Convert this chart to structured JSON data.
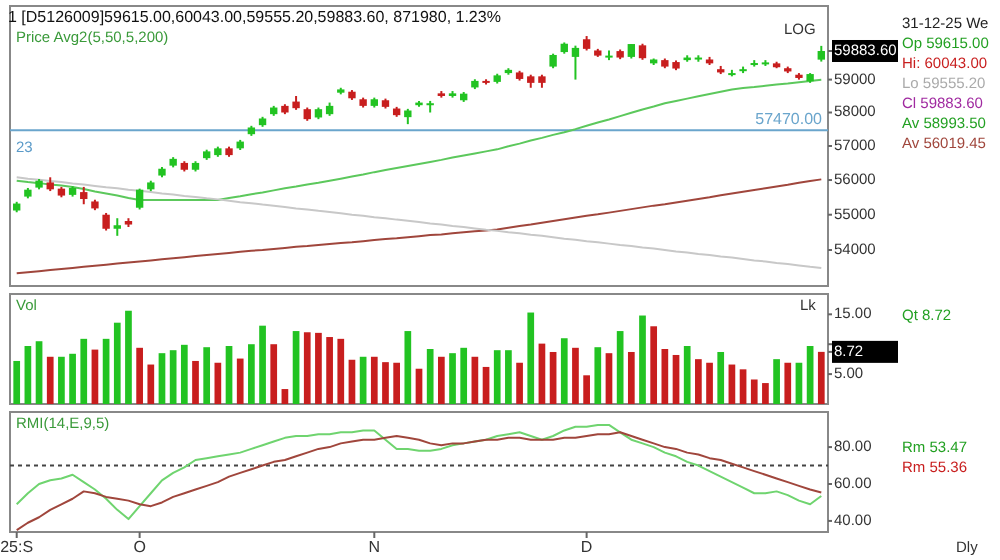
{
  "chart_data": [
    {
      "type": "candlestick",
      "title": "1 [D5126009]59615.00,60043.00,59555.20,59883.60, 871980, 1.23%",
      "log": true,
      "tick_labels": "y",
      "ylim": [
        53000,
        61300
      ],
      "yticks": [
        54000,
        55000,
        56000,
        57000,
        58000,
        59000,
        {
          "value": 59883.6,
          "label": "59883.60"
        }
      ],
      "categories": [
        null,
        null,
        null,
        null,
        null,
        null,
        null,
        null,
        null,
        null,
        null,
        null,
        null,
        null,
        null,
        null,
        null,
        null,
        null,
        null,
        null,
        null,
        null,
        null,
        null,
        null,
        null,
        null,
        null,
        null,
        null,
        null,
        null,
        null,
        null,
        null,
        null,
        null,
        null,
        null,
        null,
        null,
        null,
        null,
        null,
        null,
        null,
        null,
        null,
        null,
        null,
        null,
        null,
        null,
        null,
        null,
        null,
        null,
        null,
        null,
        null,
        null,
        null,
        null,
        null,
        null,
        null,
        null,
        null,
        null,
        null,
        null,
        null
      ],
      "ohlc": [
        [
          55120,
          55370,
          55070,
          55320
        ],
        [
          55520,
          55770,
          55470,
          55720
        ],
        [
          55780,
          56030,
          55730,
          55980
        ],
        [
          55930,
          56080,
          55680,
          55730
        ],
        [
          55750,
          55800,
          55500,
          55550
        ],
        [
          55570,
          55820,
          55520,
          55770
        ],
        [
          55650,
          55800,
          55300,
          55450
        ],
        [
          55380,
          55430,
          55130,
          55180
        ],
        [
          55000,
          55050,
          54550,
          54600
        ],
        [
          54600,
          54900,
          54400,
          54700
        ],
        [
          54820,
          54900,
          54650,
          54720
        ],
        [
          55200,
          55750,
          55150,
          55720
        ],
        [
          55730,
          55980,
          55680,
          55930
        ],
        [
          56130,
          56380,
          56080,
          56330
        ],
        [
          56420,
          56670,
          56370,
          56620
        ],
        [
          56500,
          56550,
          56250,
          56300
        ],
        [
          56300,
          56550,
          56250,
          56500
        ],
        [
          56640,
          56890,
          56590,
          56840
        ],
        [
          56730,
          56980,
          56680,
          56930
        ],
        [
          56930,
          56980,
          56680,
          56730
        ],
        [
          56930,
          57180,
          56880,
          57130
        ],
        [
          57350,
          57600,
          57300,
          57550
        ],
        [
          57620,
          57870,
          57570,
          57820
        ],
        [
          57950,
          58200,
          57900,
          58150
        ],
        [
          58200,
          58250,
          57950,
          58000
        ],
        [
          58330,
          58500,
          58080,
          58130
        ],
        [
          58100,
          58150,
          57750,
          57800
        ],
        [
          57850,
          58150,
          57800,
          58100
        ],
        [
          57950,
          58300,
          57900,
          58200
        ],
        [
          58600,
          58750,
          58550,
          58700
        ],
        [
          58630,
          58680,
          58380,
          58430
        ],
        [
          58400,
          58450,
          58150,
          58200
        ],
        [
          58200,
          58450,
          58150,
          58400
        ],
        [
          58370,
          58420,
          58120,
          58170
        ],
        [
          58120,
          58170,
          57870,
          57920
        ],
        [
          57860,
          58110,
          57650,
          58060
        ],
        [
          58220,
          58350,
          58170,
          58300
        ],
        [
          58240,
          58350,
          58000,
          58280
        ],
        [
          58580,
          58650,
          58450,
          58500
        ],
        [
          58500,
          58650,
          58450,
          58580
        ],
        [
          58370,
          58620,
          58320,
          58570
        ],
        [
          58760,
          59010,
          58710,
          58960
        ],
        [
          58960,
          59010,
          58850,
          58900
        ],
        [
          58930,
          59180,
          58880,
          59130
        ],
        [
          59200,
          59350,
          59150,
          59300
        ],
        [
          59220,
          59270,
          58970,
          59020
        ],
        [
          59100,
          59150,
          58750,
          58900
        ],
        [
          59100,
          59150,
          58750,
          58900
        ],
        [
          59400,
          59800,
          59350,
          59760
        ],
        [
          59850,
          60150,
          59800,
          60110
        ],
        [
          59700,
          60050,
          59000,
          59980
        ],
        [
          60250,
          60350,
          59900,
          59950
        ],
        [
          59900,
          59950,
          59700,
          59740
        ],
        [
          59700,
          59900,
          59600,
          59740
        ],
        [
          59880,
          59930,
          59630,
          59680
        ],
        [
          59700,
          60100,
          59650,
          60100
        ],
        [
          60060,
          60110,
          59610,
          59660
        ],
        [
          59500,
          59650,
          59450,
          59620
        ],
        [
          59600,
          59650,
          59350,
          59400
        ],
        [
          59540,
          59590,
          59290,
          59340
        ],
        [
          59600,
          59750,
          59550,
          59680
        ],
        [
          59640,
          59750,
          59550,
          59680
        ],
        [
          59620,
          59700,
          59450,
          59500
        ],
        [
          59320,
          59420,
          59170,
          59220
        ],
        [
          59160,
          59300,
          59100,
          59200
        ],
        [
          59280,
          59400,
          59200,
          59320
        ],
        [
          59490,
          59600,
          59400,
          59510
        ],
        [
          59510,
          59600,
          59420,
          59530
        ],
        [
          59500,
          59550,
          59350,
          59380
        ],
        [
          59350,
          59400,
          59200,
          59250
        ],
        [
          59150,
          59200,
          59000,
          59050
        ],
        [
          58950,
          59200,
          58900,
          59170
        ],
        [
          59615,
          60043,
          59555.2,
          59883.6
        ]
      ],
      "colors": [
        "#22c322",
        "#22c322",
        "#22c322",
        "#c81e1e",
        "#c81e1e",
        "#22c322",
        "#c81e1e",
        "#c81e1e",
        "#c81e1e",
        "#22c322",
        "#c81e1e",
        "#22c322",
        "#22c322",
        "#22c322",
        "#22c322",
        "#c81e1e",
        "#22c322",
        "#22c322",
        "#22c322",
        "#c81e1e",
        "#22c322",
        "#22c322",
        "#22c322",
        "#22c322",
        "#c81e1e",
        "#c81e1e",
        "#c81e1e",
        "#22c322",
        "#22c322",
        "#22c322",
        "#c81e1e",
        "#c81e1e",
        "#22c322",
        "#c81e1e",
        "#c81e1e",
        "#22c322",
        "#22c322",
        "#22c322",
        "#c81e1e",
        "#22c322",
        "#22c322",
        "#22c322",
        "#c81e1e",
        "#22c322",
        "#22c322",
        "#c81e1e",
        "#c81e1e",
        "#c81e1e",
        "#22c322",
        "#22c322",
        "#22c322",
        "#c81e1e",
        "#c81e1e",
        "#22c322",
        "#c81e1e",
        "#22c322",
        "#c81e1e",
        "#22c322",
        "#c81e1e",
        "#c81e1e",
        "#22c322",
        "#22c322",
        "#c81e1e",
        "#c81e1e",
        "#22c322",
        "#22c322",
        "#22c322",
        "#22c322",
        "#c81e1e",
        "#c81e1e",
        "#c81e1e",
        "#22c322",
        "#22c322"
      ],
      "series": [
        {
          "type": "line",
          "color": "#5cc85c",
          "values": [
            55980,
            55940,
            55910,
            55870,
            55840,
            55800,
            55740,
            55670,
            55610,
            55550,
            55480,
            55420,
            55420,
            55420,
            55420,
            55420,
            55420,
            55420,
            55420,
            55480,
            55530,
            55590,
            55640,
            55700,
            55760,
            55810,
            55870,
            55920,
            55980,
            56040,
            56100,
            56160,
            56230,
            56290,
            56350,
            56410,
            56470,
            56530,
            56590,
            56660,
            56720,
            56780,
            56840,
            56900,
            56990,
            57070,
            57160,
            57240,
            57330,
            57410,
            57500,
            57600,
            57700,
            57790,
            57890,
            57990,
            58090,
            58180,
            58280,
            58350,
            58420,
            58490,
            58560,
            58630,
            58700,
            58740,
            58770,
            58810,
            58850,
            58880,
            58920,
            58960,
            58993.5
          ]
        },
        {
          "type": "line",
          "color": "#a0463c",
          "values": [
            53350,
            53380,
            53410,
            53440,
            53470,
            53500,
            53530,
            53560,
            53590,
            53620,
            53650,
            53680,
            53710,
            53740,
            53770,
            53800,
            53830,
            53860,
            53890,
            53920,
            53950,
            53980,
            54000,
            54030,
            54060,
            54090,
            54110,
            54140,
            54170,
            54200,
            54220,
            54250,
            54280,
            54310,
            54330,
            54360,
            54390,
            54420,
            54440,
            54470,
            54500,
            54530,
            54550,
            54580,
            54630,
            54680,
            54720,
            54770,
            54820,
            54870,
            54920,
            54970,
            55010,
            55060,
            55110,
            55160,
            55210,
            55260,
            55300,
            55350,
            55400,
            55450,
            55500,
            55560,
            55610,
            55660,
            55710,
            55760,
            55810,
            55860,
            55920,
            55970,
            56019.45
          ]
        },
        {
          "type": "line",
          "color": "#c8c8c8",
          "values": [
            56080,
            56040,
            56010,
            55970,
            55940,
            55900,
            55870,
            55830,
            55790,
            55760,
            55720,
            55690,
            55650,
            55610,
            55580,
            55540,
            55510,
            55470,
            55440,
            55400,
            55360,
            55330,
            55290,
            55260,
            55220,
            55180,
            55150,
            55110,
            55080,
            55040,
            55000,
            54970,
            54930,
            54900,
            54860,
            54830,
            54790,
            54750,
            54720,
            54680,
            54650,
            54610,
            54570,
            54540,
            54500,
            54470,
            54430,
            54400,
            54360,
            54320,
            54290,
            54250,
            54220,
            54180,
            54140,
            54110,
            54070,
            54040,
            54000,
            53960,
            53930,
            53890,
            53860,
            53820,
            53790,
            53750,
            53710,
            53680,
            53640,
            53610,
            53570,
            53530,
            53500
          ]
        }
      ],
      "ref_lines": [
        {
          "axis": "y",
          "value": 57470,
          "label": "57470.00",
          "color": "#6aa5cc"
        }
      ],
      "annotations": [
        "Price Avg2(5,50,5,200)",
        "23",
        "LOG",
        "31-12-25 We",
        "Op 59615.00",
        "Hi: 60043.00",
        "Lo 59555.20",
        "Cl 59883.60",
        "Av 58993.50",
        "Av 56019.45"
      ]
    },
    {
      "type": "bar",
      "tick_labels": "y",
      "ylim": [
        0,
        18.4
      ],
      "yticks": [
        {
          "value": 5,
          "label": "5.00"
        },
        {
          "value": 10,
          "label": null
        },
        {
          "value": 15,
          "label": "15.00"
        },
        {
          "value": 8.72,
          "label": "8.72"
        }
      ],
      "categories": [
        null,
        null,
        null,
        null,
        null,
        null,
        null,
        null,
        null,
        null,
        null,
        null,
        null,
        null,
        null,
        null,
        null,
        null,
        null,
        null,
        null,
        null,
        null,
        null,
        null,
        null,
        null,
        null,
        null,
        null,
        null,
        null,
        null,
        null,
        null,
        null,
        null,
        null,
        null,
        null,
        null,
        null,
        null,
        null,
        null,
        null,
        null,
        null,
        null,
        null,
        null,
        null,
        null,
        null,
        null,
        null,
        null,
        null,
        null,
        null,
        null,
        null,
        null,
        null,
        null,
        null,
        null,
        null,
        null,
        null,
        null,
        null,
        null
      ],
      "values": [
        7.2,
        9.7,
        10.5,
        7.9,
        7.9,
        8.4,
        10.9,
        9.1,
        10.9,
        13.6,
        15.6,
        9.4,
        6.6,
        8.5,
        9.0,
        9.9,
        7.2,
        9.5,
        6.9,
        9.7,
        7.6,
        10.0,
        13.1,
        10.0,
        2.5,
        12.2,
        12.0,
        11.9,
        11.2,
        10.9,
        7.4,
        7.9,
        7.9,
        7.0,
        6.9,
        12.2,
        5.9,
        9.2,
        7.9,
        8.5,
        9.4,
        7.9,
        6.2,
        9.0,
        9.0,
        6.9,
        15.3,
        10.1,
        8.7,
        11.0,
        9.4,
        4.8,
        9.5,
        8.5,
        12.2,
        8.7,
        14.8,
        13.0,
        9.2,
        8.2,
        9.7,
        7.5,
        6.9,
        8.7,
        6.6,
        5.8,
        4.1,
        3.5,
        7.5,
        6.9,
        6.9,
        9.7,
        8.72
      ],
      "colors": [
        "#22c322",
        "#22c322",
        "#22c322",
        "#c81e1e",
        "#22c322",
        "#22c322",
        "#22c322",
        "#c81e1e",
        "#22c322",
        "#22c322",
        "#22c322",
        "#c81e1e",
        "#c81e1e",
        "#22c322",
        "#22c322",
        "#22c322",
        "#c81e1e",
        "#22c322",
        "#c81e1e",
        "#22c322",
        "#c81e1e",
        "#22c322",
        "#22c322",
        "#c81e1e",
        "#c81e1e",
        "#22c322",
        "#c81e1e",
        "#c81e1e",
        "#c81e1e",
        "#c81e1e",
        "#c81e1e",
        "#22c322",
        "#c81e1e",
        "#c81e1e",
        "#c81e1e",
        "#22c322",
        "#c81e1e",
        "#22c322",
        "#c81e1e",
        "#22c322",
        "#22c322",
        "#c81e1e",
        "#c81e1e",
        "#22c322",
        "#22c322",
        "#c81e1e",
        "#22c322",
        "#c81e1e",
        "#c81e1e",
        "#22c322",
        "#c81e1e",
        "#c81e1e",
        "#22c322",
        "#c81e1e",
        "#22c322",
        "#c81e1e",
        "#22c322",
        "#c81e1e",
        "#c81e1e",
        "#c81e1e",
        "#22c322",
        "#c81e1e",
        "#c81e1e",
        "#22c322",
        "#c81e1e",
        "#c81e1e",
        "#c81e1e",
        "#c81e1e",
        "#22c322",
        "#c81e1e",
        "#22c322",
        "#22c322",
        "#c81e1e"
      ],
      "annotations": [
        "Vol",
        "Lk",
        "Qt 8.72"
      ]
    },
    {
      "type": "line",
      "ylim": [
        34,
        99
      ],
      "yticks": [
        {
          "value": 40,
          "label": "40.00"
        },
        {
          "value": 60,
          "label": "60.00"
        },
        {
          "value": 80,
          "label": "80.00"
        }
      ],
      "categories": [
        "25:S",
        null,
        null,
        null,
        null,
        null,
        null,
        null,
        null,
        null,
        null,
        "O",
        null,
        null,
        null,
        null,
        null,
        null,
        null,
        null,
        null,
        null,
        null,
        null,
        null,
        null,
        null,
        null,
        null,
        null,
        null,
        null,
        "N",
        null,
        null,
        null,
        null,
        null,
        null,
        null,
        null,
        null,
        null,
        null,
        null,
        null,
        null,
        null,
        null,
        null,
        null,
        "D",
        null,
        null,
        null,
        null,
        null,
        null,
        null,
        null,
        null,
        null,
        null,
        null,
        null,
        null,
        null,
        null,
        null,
        null,
        null,
        null,
        null
      ],
      "series": [
        {
          "color": "#6fd46f",
          "values": [
            49,
            55,
            60,
            62,
            63,
            65,
            61,
            57,
            52,
            46,
            41,
            48,
            55,
            62,
            66,
            69,
            73,
            74,
            75,
            76,
            77,
            79,
            81,
            83,
            85,
            86,
            86,
            87,
            87,
            88,
            88,
            89,
            89,
            84,
            79,
            79,
            78,
            78,
            79,
            81,
            82,
            83,
            84,
            86,
            87,
            88,
            86,
            84,
            86,
            89,
            91,
            91,
            92,
            92,
            88,
            84,
            82,
            80,
            77,
            75,
            72,
            70,
            67,
            64,
            61,
            58,
            55,
            55,
            56,
            54,
            51,
            49,
            53.47
          ]
        },
        {
          "color": "#a0463c",
          "values": [
            35,
            39,
            42,
            46,
            49,
            52,
            56,
            55,
            53,
            52,
            51,
            49,
            48,
            50,
            53,
            55,
            57,
            59,
            61,
            64,
            66,
            68,
            70,
            72,
            73,
            75,
            77,
            79,
            80,
            82,
            83,
            84,
            84,
            85,
            86,
            85,
            84,
            82,
            81,
            82,
            82,
            83,
            84,
            84,
            85,
            85,
            84,
            84,
            84,
            85,
            85,
            86,
            87,
            87,
            88,
            86,
            84,
            82,
            80,
            79,
            77,
            76,
            74,
            73,
            71,
            69,
            67,
            65,
            63,
            61,
            59,
            57,
            55.36
          ]
        }
      ],
      "ref_lines": [
        {
          "axis": "y",
          "value": 70,
          "line_style": "dotted",
          "color": "#444444"
        }
      ],
      "annotations": [
        "RMI(14,E,9,5)",
        "Rm 53.47",
        "Rm 55.36",
        "Dly"
      ]
    }
  ]
}
